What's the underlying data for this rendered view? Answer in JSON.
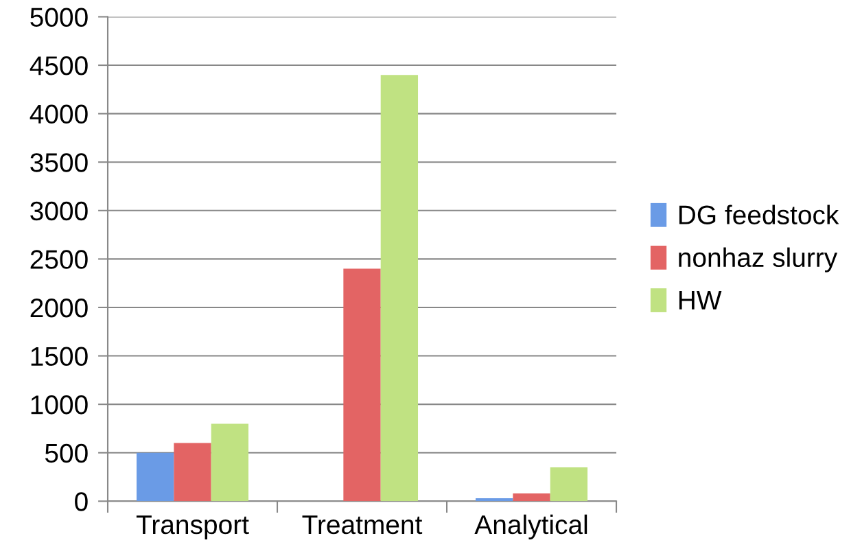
{
  "chart_data": {
    "type": "bar",
    "categories": [
      "Transport",
      "Treatment",
      "Analytical"
    ],
    "series": [
      {
        "name": "DG feedstock",
        "color": "#6a9be6",
        "values": [
          500,
          0,
          30
        ]
      },
      {
        "name": "nonhaz slurry",
        "color": "#e36464",
        "values": [
          600,
          2400,
          80
        ]
      },
      {
        "name": "HW",
        "color": "#c0e282",
        "values": [
          800,
          4400,
          350
        ]
      }
    ],
    "ylim": [
      0,
      5000
    ],
    "yticks": [
      0,
      500,
      1000,
      1500,
      2000,
      2500,
      3000,
      3500,
      4000,
      4500,
      5000
    ],
    "grid": "y",
    "legend": "right"
  }
}
